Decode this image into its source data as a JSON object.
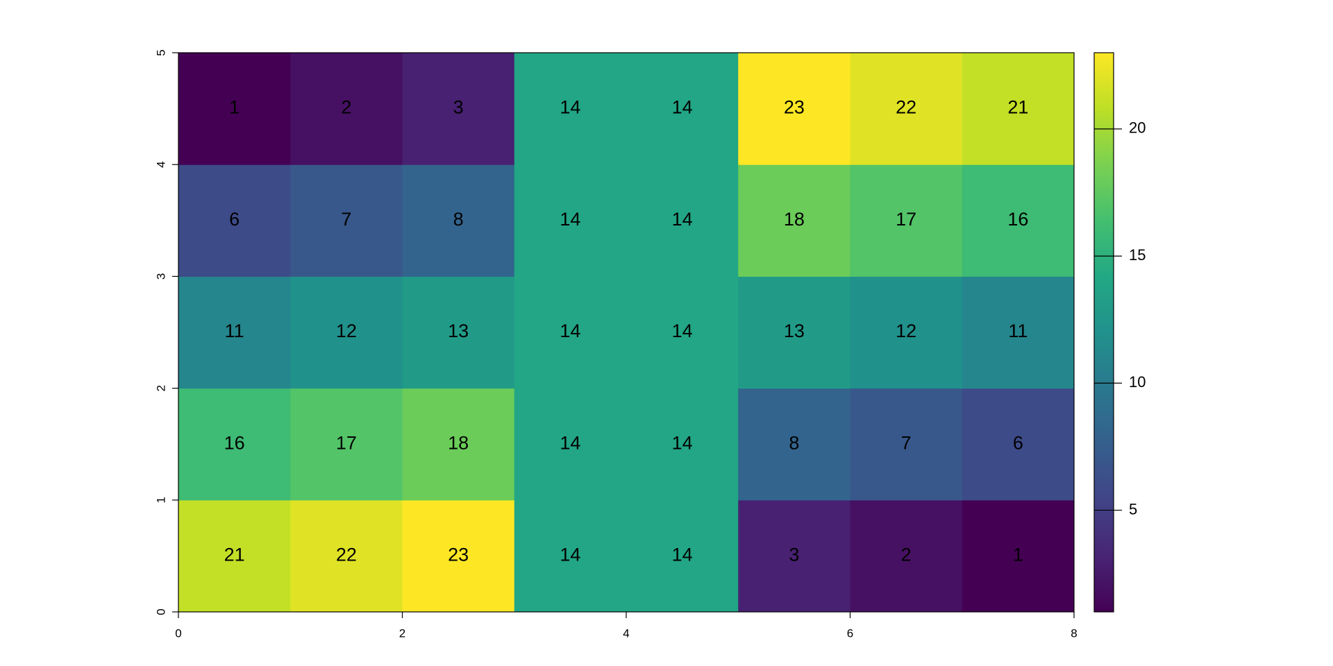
{
  "chart_data": {
    "type": "heatmap",
    "xlim": [
      0,
      8
    ],
    "xticks": [
      0,
      2,
      4,
      6,
      8
    ],
    "ylim": [
      0,
      5
    ],
    "yticks": [
      0,
      1,
      2,
      3,
      4,
      5
    ],
    "colormap": "viridis",
    "zlim": [
      1,
      23
    ],
    "colorbar_ticks": [
      5,
      10,
      15,
      20
    ],
    "values": [
      [
        21,
        22,
        23,
        14,
        14,
        3,
        2,
        1
      ],
      [
        16,
        17,
        18,
        14,
        14,
        8,
        7,
        6
      ],
      [
        11,
        12,
        13,
        14,
        14,
        13,
        12,
        11
      ],
      [
        6,
        7,
        8,
        14,
        14,
        18,
        17,
        16
      ],
      [
        1,
        2,
        3,
        14,
        14,
        23,
        22,
        21
      ]
    ]
  }
}
